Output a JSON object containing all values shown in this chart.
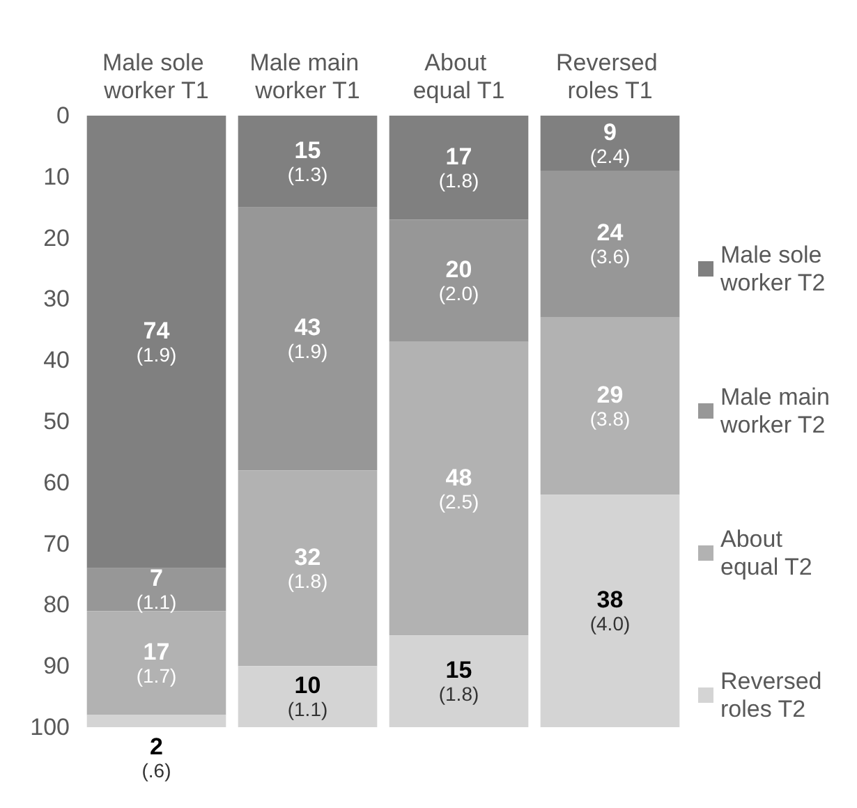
{
  "chart_data": {
    "type": "bar",
    "stacked": true,
    "categories": [
      "Male sole worker T1",
      "Male main worker T1",
      "About equal T1",
      "Reversed roles T1"
    ],
    "series": [
      {
        "name": "Male sole worker T2",
        "color": "#808080",
        "values": [
          74,
          15,
          17,
          9
        ],
        "value_labels": [
          "74 (1.9)",
          "15 (1.3)",
          "17 (1.8)",
          "9 (2.4)"
        ]
      },
      {
        "name": "Male main worker T2",
        "color": "#979797",
        "values": [
          7,
          43,
          20,
          24
        ],
        "value_labels": [
          "7 (1.1)",
          "43 (1.9)",
          "20 (2.0)",
          "24 (3.6)"
        ]
      },
      {
        "name": "About equal T2",
        "color": "#b2b2b2",
        "values": [
          17,
          32,
          48,
          29
        ],
        "value_labels": [
          "17 (1.7)",
          "32 (1.8)",
          "48 (2.5)",
          "29 (3.8)"
        ]
      },
      {
        "name": "Reversed roles T2",
        "color": "#d4d4d4",
        "values": [
          2,
          10,
          15,
          38
        ],
        "value_labels": [
          "2 (.6)",
          "10 (1.1)",
          "15 (1.8)",
          "38 (4.0)"
        ]
      }
    ],
    "ylim": [
      100,
      0
    ],
    "yticks": [
      0,
      10,
      20,
      30,
      40,
      50,
      60,
      70,
      80,
      90,
      100
    ],
    "grid": false,
    "legend": "right"
  }
}
